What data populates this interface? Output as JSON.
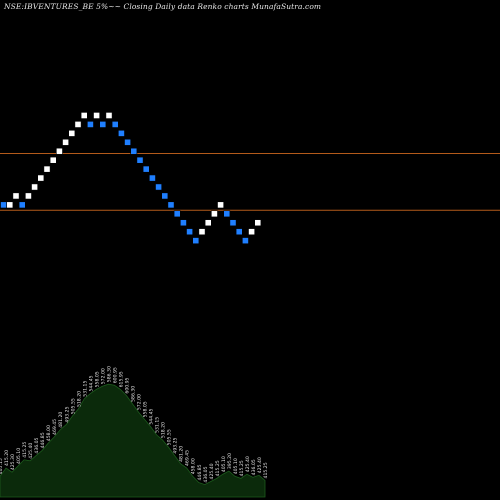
{
  "chart_data": {
    "type": "renko",
    "title": "NSE:IBVENTURES_BE 5%~~ Closing Daily data Renko charts MunafaSutra.com",
    "colors": {
      "background": "#000000",
      "up_brick": "#ffffff",
      "down_brick": "#1f7fff",
      "level_line": "#b35a1a",
      "volume_fill": "#0b2a0b",
      "volume_line": "#1c5a1c"
    },
    "ylim": [
      0,
      33
    ],
    "levels": [
      20.3,
      13.95
    ],
    "bricks": [
      {
        "y": 14,
        "dir": "down"
      },
      {
        "y": 14,
        "dir": "up"
      },
      {
        "y": 15,
        "dir": "up"
      },
      {
        "y": 14,
        "dir": "down"
      },
      {
        "y": 15,
        "dir": "up"
      },
      {
        "y": 16,
        "dir": "up"
      },
      {
        "y": 17,
        "dir": "up"
      },
      {
        "y": 18,
        "dir": "up"
      },
      {
        "y": 19,
        "dir": "up"
      },
      {
        "y": 20,
        "dir": "up"
      },
      {
        "y": 21,
        "dir": "up"
      },
      {
        "y": 22,
        "dir": "up"
      },
      {
        "y": 23,
        "dir": "up"
      },
      {
        "y": 24,
        "dir": "up"
      },
      {
        "y": 23,
        "dir": "down"
      },
      {
        "y": 24,
        "dir": "up"
      },
      {
        "y": 23,
        "dir": "down"
      },
      {
        "y": 24,
        "dir": "up"
      },
      {
        "y": 23,
        "dir": "down"
      },
      {
        "y": 22,
        "dir": "down"
      },
      {
        "y": 21,
        "dir": "down"
      },
      {
        "y": 20,
        "dir": "down"
      },
      {
        "y": 19,
        "dir": "down"
      },
      {
        "y": 18,
        "dir": "down"
      },
      {
        "y": 17,
        "dir": "down"
      },
      {
        "y": 16,
        "dir": "down"
      },
      {
        "y": 15,
        "dir": "down"
      },
      {
        "y": 14,
        "dir": "down"
      },
      {
        "y": 13,
        "dir": "down"
      },
      {
        "y": 12,
        "dir": "down"
      },
      {
        "y": 11,
        "dir": "down"
      },
      {
        "y": 10,
        "dir": "down"
      },
      {
        "y": 11,
        "dir": "up"
      },
      {
        "y": 12,
        "dir": "up"
      },
      {
        "y": 13,
        "dir": "up"
      },
      {
        "y": 14,
        "dir": "up"
      },
      {
        "y": 13,
        "dir": "down"
      },
      {
        "y": 12,
        "dir": "down"
      },
      {
        "y": 11,
        "dir": "down"
      },
      {
        "y": 10,
        "dir": "down"
      },
      {
        "y": 11,
        "dir": "up"
      },
      {
        "y": 12,
        "dir": "up"
      }
    ],
    "volume": [
      20,
      28,
      24,
      30,
      36,
      35,
      40,
      45,
      52,
      58,
      65,
      70,
      78,
      85,
      95,
      100,
      104,
      107,
      109,
      108,
      104,
      98,
      90,
      82,
      75,
      68,
      60,
      55,
      48,
      40,
      32,
      28,
      20,
      14,
      12,
      15,
      18,
      22,
      25,
      20,
      18,
      22,
      19,
      21,
      16
    ],
    "volume_range": [
      0,
      115
    ],
    "price_labels": [
      "405.15",
      "415.20",
      "425.30",
      "405.10",
      "415.25",
      "425.40",
      "436.05",
      "446.85",
      "458.00",
      "469.45",
      "481.20",
      "493.25",
      "505.55",
      "518.20",
      "531.15",
      "544.45",
      "558.05",
      "572.00",
      "586.30",
      "600.95",
      "615.95",
      "600.95",
      "586.30",
      "572.00",
      "558.05",
      "544.45",
      "531.15",
      "518.20",
      "505.55",
      "493.25",
      "481.20",
      "469.45",
      "458.00",
      "446.85",
      "436.05",
      "425.40",
      "415.25",
      "405.10",
      "395.20",
      "405.10",
      "415.25",
      "425.40",
      "436.05",
      "425.40",
      "415.25"
    ]
  }
}
